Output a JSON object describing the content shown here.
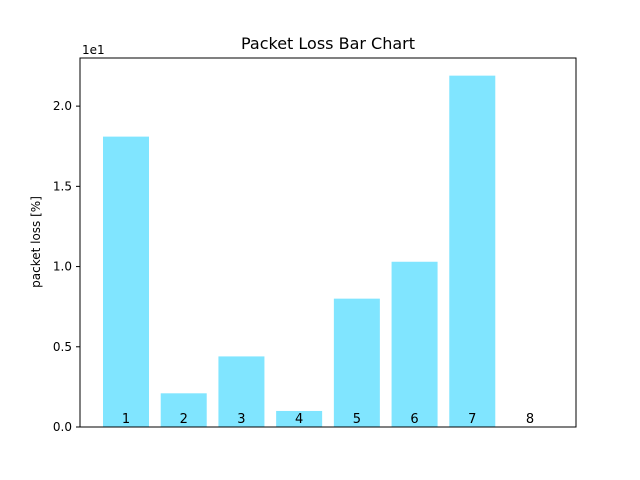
{
  "chart_data": {
    "type": "bar",
    "title": "Packet Loss Bar Chart",
    "xlabel": "",
    "ylabel": "packet loss [%]",
    "y_offset_label": "1e1",
    "categories": [
      "1",
      "2",
      "3",
      "4",
      "5",
      "6",
      "7",
      "8"
    ],
    "values": [
      18.1,
      2.1,
      4.4,
      1.0,
      8.0,
      10.3,
      21.9,
      0
    ],
    "ylim": [
      0,
      23
    ],
    "yticks": [
      0,
      5,
      10,
      15,
      20
    ],
    "ytick_labels": [
      "0.0",
      "0.5",
      "1.0",
      "1.5",
      "2.0"
    ],
    "bar_color": "#80e5ff",
    "grid": false,
    "legend": "none"
  }
}
